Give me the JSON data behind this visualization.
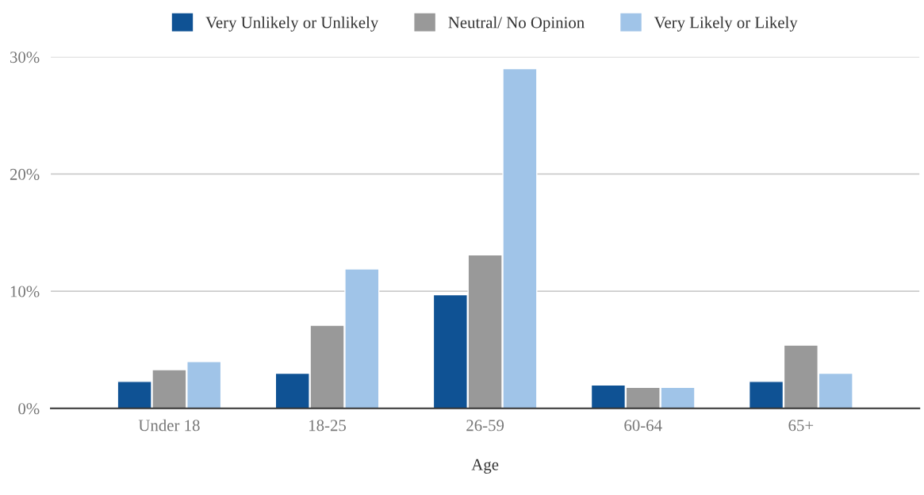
{
  "chart_data": {
    "type": "bar",
    "xlabel": "Age",
    "categories": [
      "Under 18",
      "18-25",
      "26-59",
      "60-64",
      "65+"
    ],
    "series": [
      {
        "name": "Very Unlikely or Unlikely",
        "color": "#0f5294",
        "values": [
          2.3,
          3.0,
          9.7,
          2.0,
          2.3
        ]
      },
      {
        "name": "Neutral/ No Opinion",
        "color": "#999999",
        "values": [
          3.3,
          7.1,
          13.1,
          1.8,
          5.4
        ]
      },
      {
        "name": "Very Likely or Likely",
        "color": "#a0c4e8",
        "values": [
          4.0,
          11.9,
          29.0,
          1.8,
          3.0
        ]
      }
    ],
    "ylim": [
      0,
      30
    ],
    "yticks": [
      {
        "value": 0,
        "label": "0%"
      },
      {
        "value": 10,
        "label": "10%"
      },
      {
        "value": 20,
        "label": "20%"
      },
      {
        "value": 30,
        "label": "30%"
      }
    ],
    "grid": "y",
    "legend": "top"
  }
}
